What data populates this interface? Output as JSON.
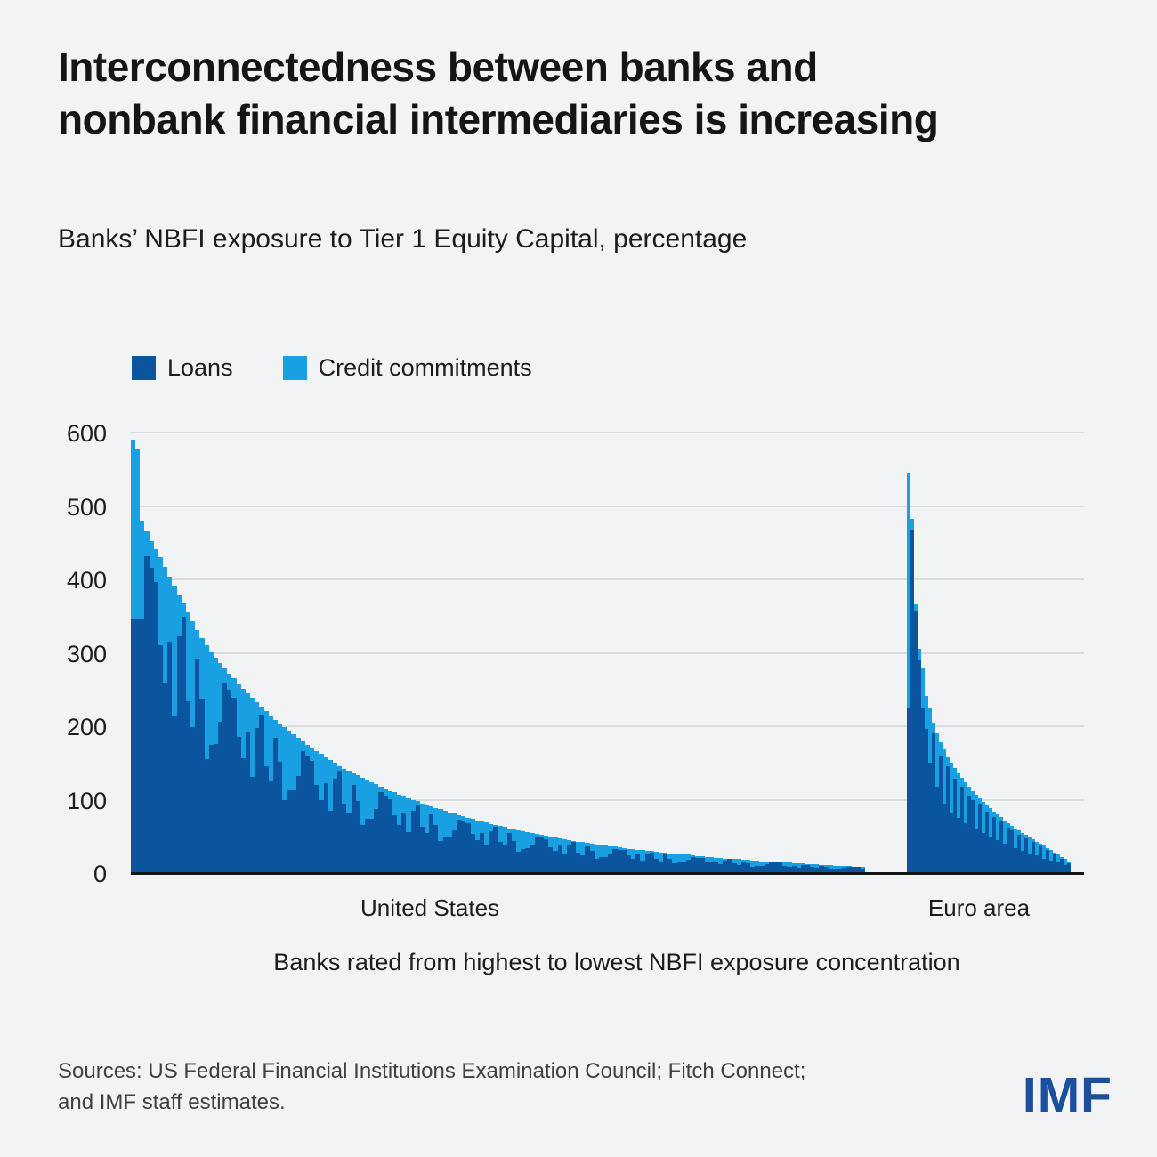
{
  "page": {
    "background": "#f2f3f5"
  },
  "header": {
    "title_lines": [
      "Interconnectedness between banks and",
      "nonbank financial intermediaries is increasing"
    ],
    "subtitle": "Banks’ NBFI exposure to Tier 1 Equity Capital, percentage"
  },
  "legend": {
    "items": [
      {
        "label": "Loans",
        "color": "#0a559e"
      },
      {
        "label": "Credit commitments",
        "color": "#18a0e2"
      }
    ]
  },
  "chart_data": {
    "type": "bar",
    "stacked": true,
    "title": "Banks’ NBFI exposure to Tier 1 Equity Capital, percentage",
    "xlabel": "Banks rated from highest to lowest NBFI exposure concentration",
    "ylabel": "",
    "ylim": [
      0,
      600
    ],
    "yticks": [
      0,
      100,
      200,
      300,
      400,
      500,
      600
    ],
    "grid": true,
    "legend_position": "top-left",
    "series_names": [
      "Loans",
      "Credit commitments"
    ],
    "bar_format": "[total_exposure_pct, loans_pct]; credit_commitments_pct = total - loans",
    "groups": [
      {
        "label": "United States",
        "bars": [
          [
            590,
            345
          ],
          [
            578,
            347
          ],
          [
            480,
            346
          ],
          [
            465,
            432
          ],
          [
            452,
            416
          ],
          [
            441,
            397
          ],
          [
            430,
            310
          ],
          [
            417,
            259
          ],
          [
            404,
            315
          ],
          [
            391,
            215
          ],
          [
            379,
            322
          ],
          [
            367,
            349
          ],
          [
            355,
            234
          ],
          [
            343,
            199
          ],
          [
            331,
            291
          ],
          [
            320,
            237
          ],
          [
            310,
            155
          ],
          [
            301,
            175
          ],
          [
            293,
            176
          ],
          [
            286,
            206
          ],
          [
            279,
            259
          ],
          [
            272,
            250
          ],
          [
            265,
            239
          ],
          [
            258,
            186
          ],
          [
            251,
            156
          ],
          [
            245,
            191
          ],
          [
            239,
            131
          ],
          [
            233,
            198
          ],
          [
            227,
            216
          ],
          [
            221,
            146
          ],
          [
            215,
            125
          ],
          [
            209,
            184
          ],
          [
            204,
            151
          ],
          [
            199,
            100
          ],
          [
            194,
            113
          ],
          [
            189,
            113
          ],
          [
            184,
            132
          ],
          [
            179,
            166
          ],
          [
            174,
            160
          ],
          [
            170,
            153
          ],
          [
            166,
            120
          ],
          [
            162,
            100
          ],
          [
            158,
            123
          ],
          [
            154,
            85
          ],
          [
            150,
            128
          ],
          [
            146,
            139
          ],
          [
            142,
            94
          ],
          [
            139,
            81
          ],
          [
            136,
            120
          ],
          [
            133,
            98
          ],
          [
            130,
            65
          ],
          [
            127,
            74
          ],
          [
            124,
            74
          ],
          [
            121,
            87
          ],
          [
            118,
            110
          ],
          [
            115,
            106
          ],
          [
            112,
            101
          ],
          [
            110,
            79
          ],
          [
            107,
            66
          ],
          [
            105,
            82
          ],
          [
            102,
            56
          ],
          [
            100,
            85
          ],
          [
            98,
            93
          ],
          [
            95,
            63
          ],
          [
            93,
            54
          ],
          [
            91,
            80
          ],
          [
            89,
            66
          ],
          [
            87,
            44
          ],
          [
            85,
            49
          ],
          [
            83,
            50
          ],
          [
            81,
            58
          ],
          [
            79,
            73
          ],
          [
            77,
            71
          ],
          [
            75,
            68
          ],
          [
            74,
            53
          ],
          [
            72,
            45
          ],
          [
            70,
            55
          ],
          [
            69,
            38
          ],
          [
            67,
            57
          ],
          [
            66,
            63
          ],
          [
            64,
            42
          ],
          [
            63,
            37
          ],
          [
            61,
            54
          ],
          [
            60,
            44
          ],
          [
            58,
            29
          ],
          [
            57,
            33
          ],
          [
            56,
            34
          ],
          [
            54,
            39
          ],
          [
            53,
            49
          ],
          [
            52,
            48
          ],
          [
            51,
            46
          ],
          [
            49,
            35
          ],
          [
            48,
            30
          ],
          [
            47,
            37
          ],
          [
            46,
            25
          ],
          [
            45,
            38
          ],
          [
            44,
            42
          ],
          [
            43,
            28
          ],
          [
            42,
            24
          ],
          [
            41,
            36
          ],
          [
            40,
            30
          ],
          [
            39,
            20
          ],
          [
            38,
            22
          ],
          [
            37,
            22
          ],
          [
            36,
            26
          ],
          [
            36,
            33
          ],
          [
            35,
            32
          ],
          [
            34,
            31
          ],
          [
            33,
            24
          ],
          [
            33,
            20
          ],
          [
            32,
            25
          ],
          [
            31,
            17
          ],
          [
            30,
            26
          ],
          [
            30,
            28
          ],
          [
            29,
            19
          ],
          [
            28,
            16
          ],
          [
            28,
            25
          ],
          [
            27,
            20
          ],
          [
            26,
            13
          ],
          [
            26,
            15
          ],
          [
            25,
            15
          ],
          [
            25,
            18
          ],
          [
            24,
            22
          ],
          [
            23,
            21
          ],
          [
            23,
            21
          ],
          [
            22,
            16
          ],
          [
            22,
            14
          ],
          [
            21,
            16
          ],
          [
            21,
            12
          ],
          [
            20,
            17
          ],
          [
            20,
            19
          ],
          [
            19,
            13
          ],
          [
            19,
            11
          ],
          [
            18,
            16
          ],
          [
            18,
            13
          ],
          [
            17,
            9
          ],
          [
            17,
            10
          ],
          [
            16,
            10
          ],
          [
            16,
            12
          ],
          [
            15,
            14
          ],
          [
            15,
            14
          ],
          [
            15,
            14
          ],
          [
            14,
            10
          ],
          [
            14,
            9
          ],
          [
            13,
            10
          ],
          [
            13,
            7
          ],
          [
            13,
            11
          ],
          [
            12,
            11
          ],
          [
            12,
            8
          ],
          [
            12,
            7
          ],
          [
            11,
            10
          ],
          [
            11,
            8
          ],
          [
            11,
            6
          ],
          [
            10,
            6
          ],
          [
            10,
            6
          ],
          [
            10,
            7
          ],
          [
            10,
            9
          ],
          [
            9,
            8
          ],
          [
            9,
            8
          ],
          [
            9,
            6
          ]
        ]
      },
      {
        "label": "Euro area",
        "bars": [
          [
            545,
            225
          ],
          [
            483,
            467
          ],
          [
            366,
            356
          ],
          [
            305,
            290
          ],
          [
            279,
            224
          ],
          [
            241,
            196
          ],
          [
            225,
            150
          ],
          [
            205,
            190
          ],
          [
            190,
            118
          ],
          [
            178,
            160
          ],
          [
            168,
            95
          ],
          [
            158,
            145
          ],
          [
            150,
            82
          ],
          [
            143,
            128
          ],
          [
            136,
            75
          ],
          [
            130,
            118
          ],
          [
            124,
            68
          ],
          [
            118,
            106
          ],
          [
            112,
            100
          ],
          [
            107,
            60
          ],
          [
            102,
            94
          ],
          [
            97,
            55
          ],
          [
            92,
            84
          ],
          [
            88,
            50
          ],
          [
            84,
            76
          ],
          [
            80,
            45
          ],
          [
            76,
            70
          ],
          [
            72,
            40
          ],
          [
            68,
            62
          ],
          [
            64,
            58
          ],
          [
            61,
            34
          ],
          [
            58,
            52
          ],
          [
            55,
            30
          ],
          [
            52,
            47
          ],
          [
            49,
            27
          ],
          [
            46,
            42
          ],
          [
            43,
            24
          ],
          [
            40,
            36
          ],
          [
            37,
            20
          ],
          [
            34,
            31
          ],
          [
            31,
            17
          ],
          [
            28,
            25
          ],
          [
            25,
            14
          ],
          [
            22,
            20
          ],
          [
            19,
            11
          ],
          [
            15,
            13
          ]
        ]
      }
    ]
  },
  "footer": {
    "sources_lines": [
      "Sources: US Federal Financial Institutions Examination Council; Fitch Connect;",
      "and IMF staff estimates."
    ],
    "logo": "IMF"
  },
  "colors": {
    "loans": "#0a559e",
    "credit_commitments": "#18a0e2",
    "background": "#f2f3f5",
    "gridline": "#dadce0",
    "baseline": "#141517",
    "logo_blue": "#1a4f9c"
  }
}
